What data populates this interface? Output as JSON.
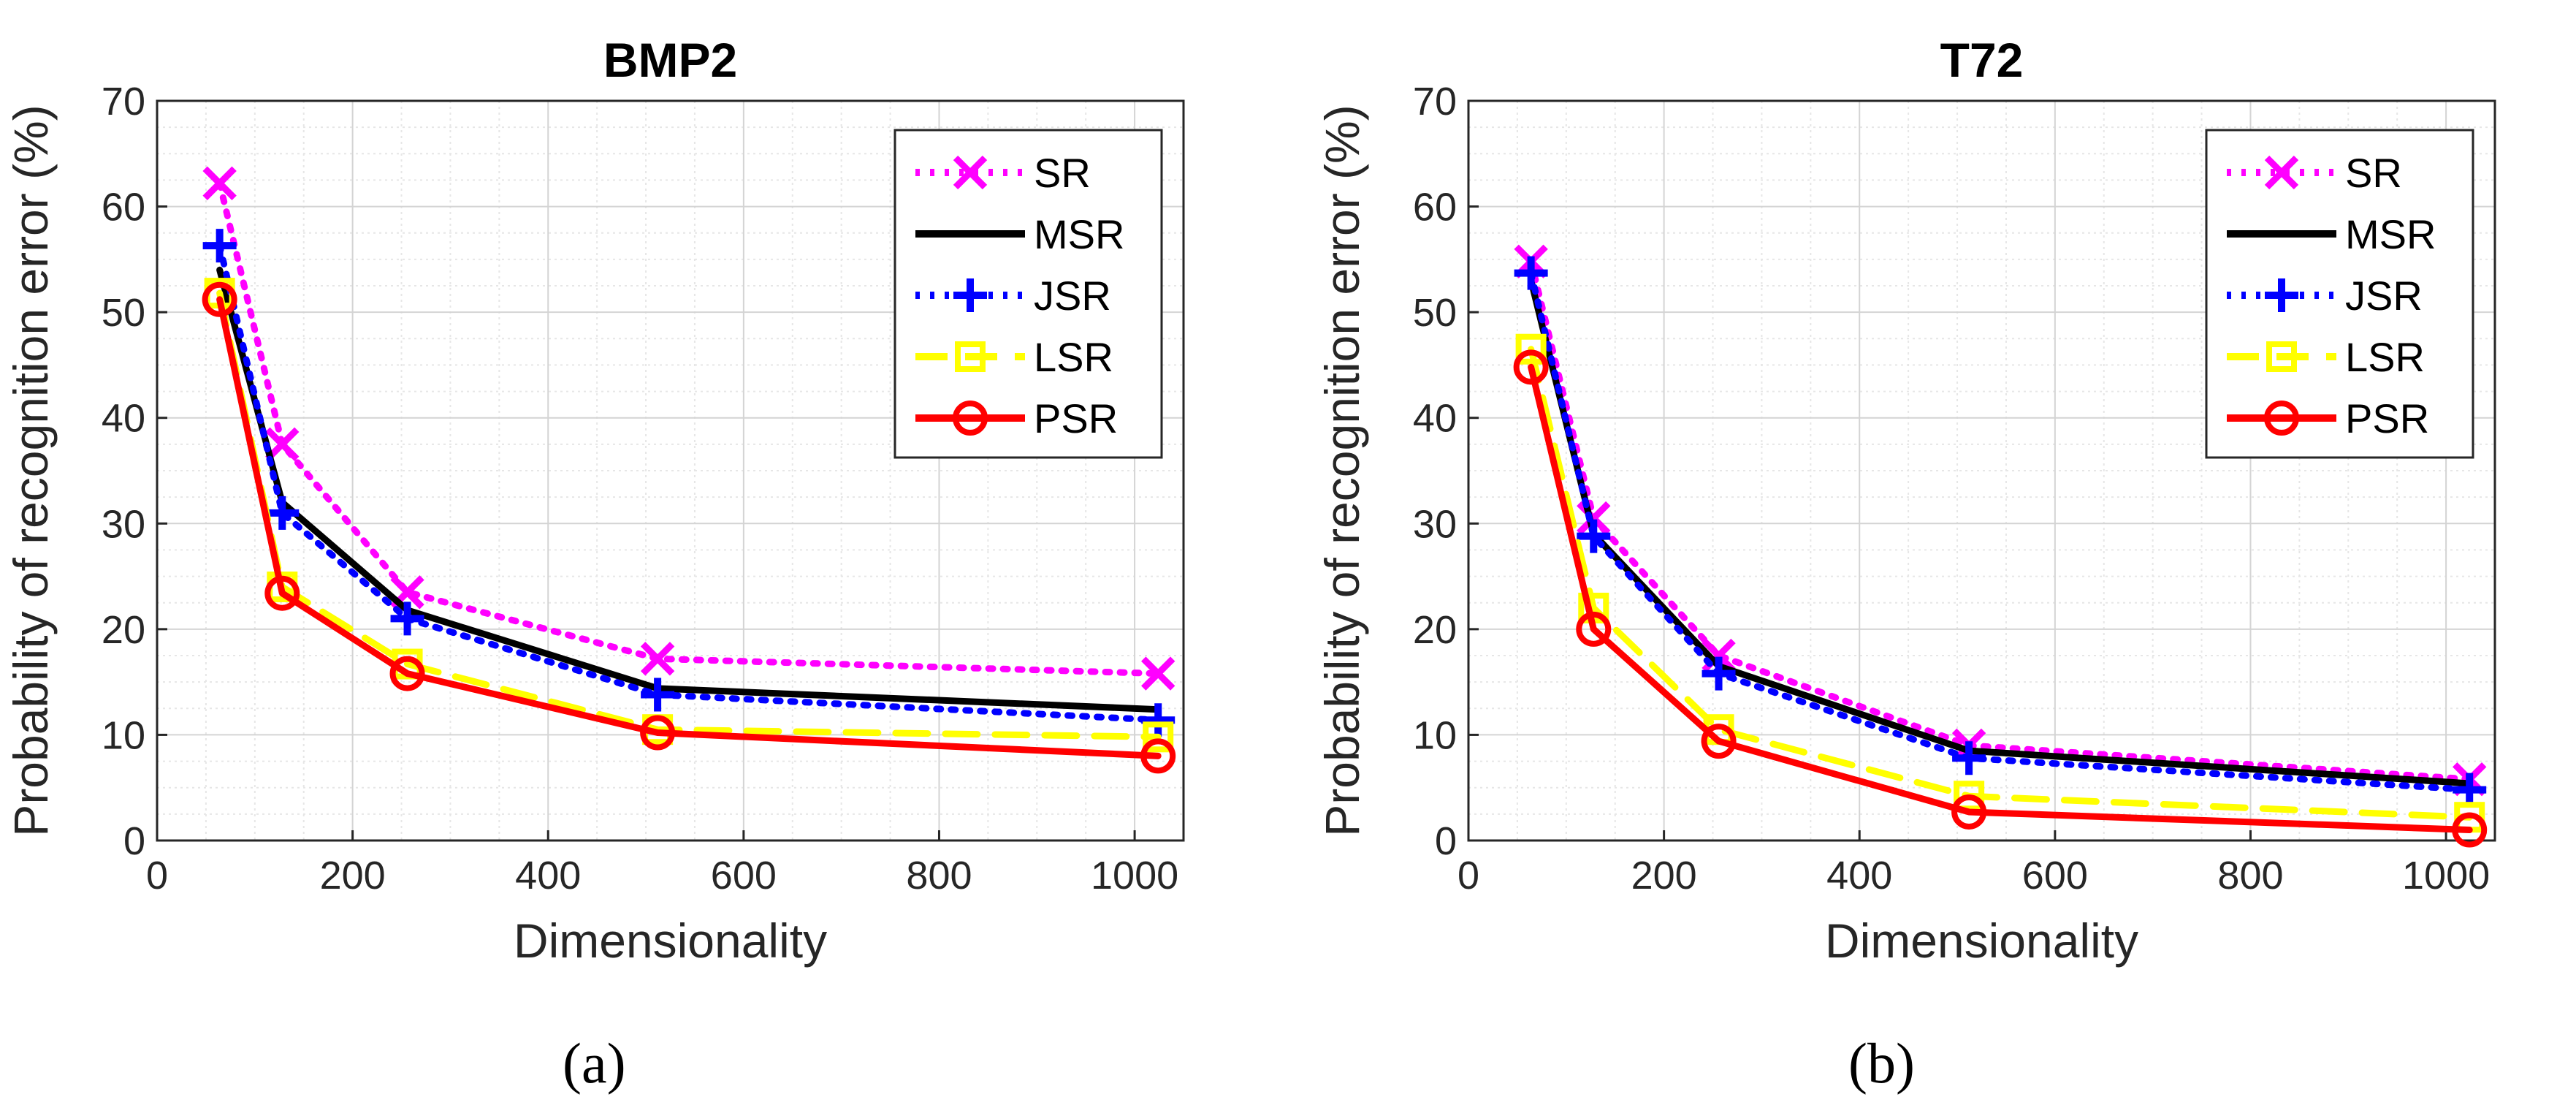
{
  "chart_data": [
    {
      "type": "line",
      "title": "BMP2",
      "xlabel": "Dimensionality",
      "ylabel": "Probability of recognition error (%)",
      "xlim": [
        0,
        1050
      ],
      "ylim": [
        0,
        70
      ],
      "xticks": [
        0,
        200,
        400,
        600,
        800,
        1000
      ],
      "yticks": [
        0,
        10,
        20,
        30,
        40,
        50,
        60,
        70
      ],
      "grid": true,
      "legend_position": "top-right",
      "x": [
        64,
        128,
        256,
        512,
        1024
      ],
      "series": [
        {
          "name": "SR",
          "values": [
            62.2,
            37.5,
            23.5,
            17.2,
            15.8
          ]
        },
        {
          "name": "MSR",
          "values": [
            54.0,
            32.0,
            21.8,
            14.4,
            12.4
          ]
        },
        {
          "name": "JSR",
          "values": [
            56.3,
            31.0,
            21.0,
            13.8,
            11.4
          ]
        },
        {
          "name": "LSR",
          "values": [
            51.8,
            24.0,
            16.7,
            10.5,
            9.8
          ]
        },
        {
          "name": "PSR",
          "values": [
            51.2,
            23.4,
            15.8,
            10.2,
            8.0
          ]
        }
      ],
      "caption": "(a)"
    },
    {
      "type": "line",
      "title": "T72",
      "xlabel": "Dimensionality",
      "ylabel": "Probability of recognition error (%)",
      "xlim": [
        0,
        1050
      ],
      "ylim": [
        0,
        70
      ],
      "xticks": [
        0,
        200,
        400,
        600,
        800,
        1000
      ],
      "yticks": [
        0,
        10,
        20,
        30,
        40,
        50,
        60,
        70
      ],
      "grid": true,
      "legend_position": "top-right",
      "x": [
        64,
        128,
        256,
        512,
        1024
      ],
      "series": [
        {
          "name": "SR",
          "values": [
            54.8,
            30.5,
            17.5,
            9.0,
            5.8
          ]
        },
        {
          "name": "MSR",
          "values": [
            53.0,
            29.0,
            16.5,
            8.5,
            5.4
          ]
        },
        {
          "name": "JSR",
          "values": [
            53.7,
            28.8,
            15.8,
            7.8,
            4.8
          ]
        },
        {
          "name": "LSR",
          "values": [
            46.5,
            22.0,
            10.5,
            4.2,
            2.2
          ]
        },
        {
          "name": "PSR",
          "values": [
            44.8,
            20.0,
            9.4,
            2.7,
            1.0
          ]
        }
      ],
      "caption": "(b)"
    }
  ],
  "styles": {
    "SR": {
      "color": "#ff00ff",
      "dash": "dot",
      "marker": "x"
    },
    "MSR": {
      "color": "#000000",
      "dash": "solid",
      "marker": "none"
    },
    "JSR": {
      "color": "#0000ff",
      "dash": "dot",
      "marker": "plus"
    },
    "LSR": {
      "color": "#ffff00",
      "dash": "dash",
      "marker": "square"
    },
    "PSR": {
      "color": "#ff0000",
      "dash": "solid",
      "marker": "circle"
    }
  }
}
